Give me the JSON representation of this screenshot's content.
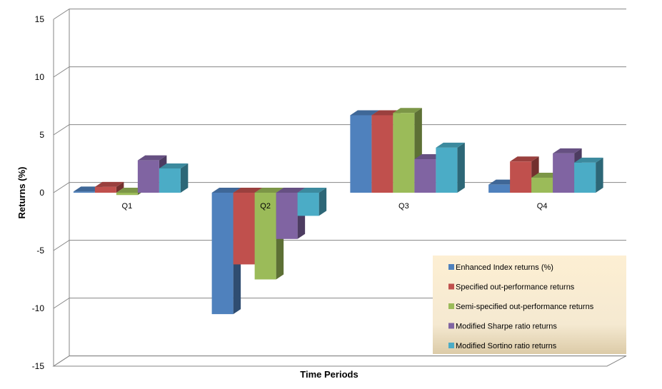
{
  "chart_data": {
    "type": "bar",
    "style": "3d-clustered-column",
    "categories": [
      "Q1",
      "Q2",
      "Q3",
      "Q4"
    ],
    "series": [
      {
        "name": "Enhanced Index returns (%)",
        "color": "#4F81BD",
        "values": [
          0.1,
          -10.5,
          6.7,
          0.7
        ]
      },
      {
        "name": "Specified out-performance returns",
        "color": "#C0504D",
        "values": [
          0.5,
          -6.2,
          6.7,
          2.7
        ]
      },
      {
        "name": "Semi-specified out-performance returns",
        "color": "#9BBB59",
        "values": [
          -0.2,
          -7.5,
          6.9,
          1.3
        ]
      },
      {
        "name": "Modified Sharpe ratio returns",
        "color": "#8064A2",
        "values": [
          2.8,
          -4.0,
          2.9,
          3.4
        ]
      },
      {
        "name": "Modified Sortino ratio returns",
        "color": "#4BACC6",
        "values": [
          2.1,
          -2.0,
          3.9,
          2.6
        ]
      }
    ],
    "xlabel": "Time Periods",
    "ylabel": "Returns (%)",
    "ylim": [
      -15,
      15
    ],
    "yticks": [
      "15",
      "10",
      "5",
      "0",
      "-5",
      "-10",
      "-15"
    ],
    "grid": true,
    "legend_position": "bottom-right"
  }
}
